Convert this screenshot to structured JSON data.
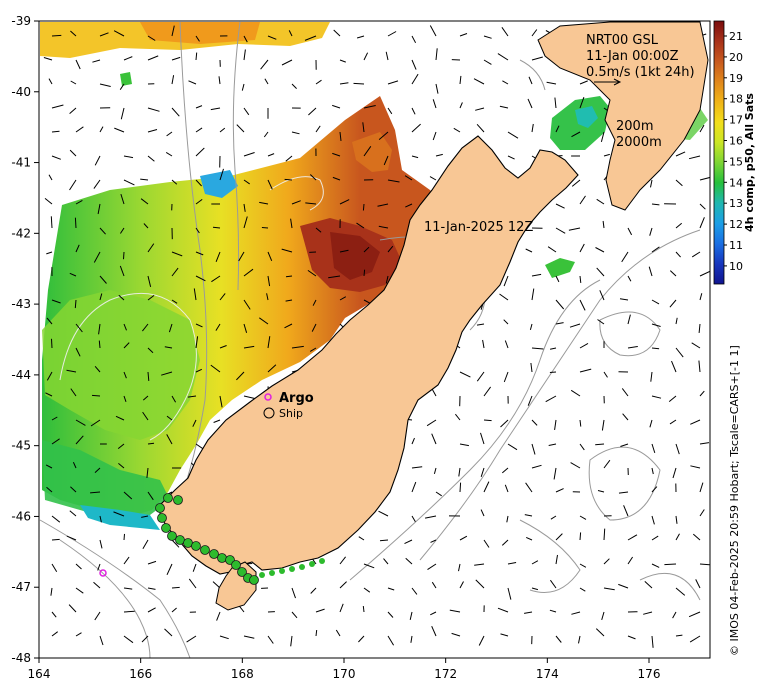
{
  "map": {
    "title_date": "11-Jan-2025 12Z",
    "current_box": {
      "line1": "NRT00 GSL",
      "line2": "11-Jan 00:00Z",
      "line3": "0.5m/s (1kt 24h)"
    },
    "isobath_labels": [
      "200m",
      "2000m"
    ],
    "legend": {
      "argo_label": "Argo",
      "ship_label": "Ship"
    },
    "credit": "© IMOS 04-Feb-2025 20:59 Hobart; Tscale=CARS+[-1 1]",
    "x_ticks": [
      "164",
      "166",
      "168",
      "170",
      "172",
      "174",
      "176"
    ],
    "y_ticks": [
      "-39",
      "-40",
      "-41",
      "-42",
      "-43",
      "-44",
      "-45",
      "-46",
      "-47",
      "-48"
    ],
    "colorbar": {
      "label": "4h comp, p50, All Sats",
      "ticks": [
        "21",
        "20",
        "19",
        "18",
        "17",
        "16",
        "15",
        "14",
        "13",
        "12",
        "11",
        "10"
      ],
      "colors": [
        "#7a0d0d",
        "#a8321a",
        "#c85a1e",
        "#e0871c",
        "#f0b417",
        "#f2de1c",
        "#cbe625",
        "#7ed534",
        "#26c03c",
        "#1fb7b0",
        "#1c9fe6",
        "#1a6fe3",
        "#1736bd",
        "#10148f"
      ]
    }
  },
  "colors": {
    "land": "#f8c795",
    "coast": "#000000",
    "isobath": "#9a9a9a",
    "argo": "#e020e0",
    "ship_fill": "#2dbb2d"
  }
}
